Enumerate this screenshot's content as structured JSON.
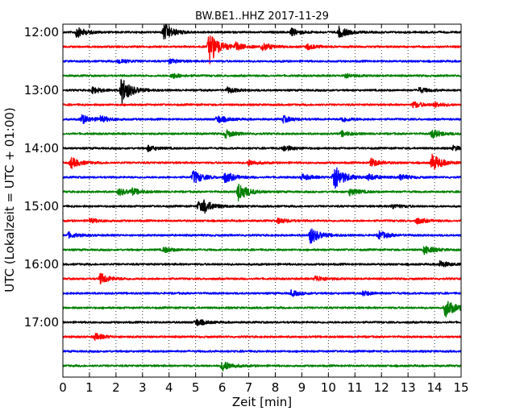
{
  "chart_data": {
    "type": "line",
    "title": "BW.BE1..HHZ 2017-11-29",
    "xlabel": "Zeit  [min]",
    "ylabel": "UTC (Lokalzeit = UTC + 01:00)",
    "xlim": [
      0,
      15
    ],
    "x_ticks": [
      "0",
      "1",
      "2",
      "3",
      "4",
      "5",
      "6",
      "7",
      "8",
      "9",
      "10",
      "11",
      "12",
      "13",
      "14",
      "15"
    ],
    "y_ticks": [
      {
        "label": "12:00",
        "row": 0
      },
      {
        "label": "13:00",
        "row": 4
      },
      {
        "label": "14:00",
        "row": 8
      },
      {
        "label": "15:00",
        "row": 12
      },
      {
        "label": "16:00",
        "row": 16
      },
      {
        "label": "17:00",
        "row": 20
      }
    ],
    "grid": "vertical dotted",
    "trace_minutes_per_line": 15,
    "color_cycle": [
      "#000000",
      "#ff0000",
      "#0000ff",
      "#008000"
    ],
    "traces": [
      {
        "start": "12:00",
        "events": [
          {
            "x": 0.5,
            "amp": 0.6
          },
          {
            "x": 3.8,
            "amp": 1.0
          },
          {
            "x": 8.6,
            "amp": 0.4
          },
          {
            "x": 10.4,
            "amp": 0.6
          }
        ]
      },
      {
        "start": "12:15",
        "events": [
          {
            "x": 5.5,
            "amp": 2.0
          },
          {
            "x": 6.5,
            "amp": 0.4
          },
          {
            "x": 7.5,
            "amp": 0.45
          },
          {
            "x": 9.2,
            "amp": 0.3
          }
        ]
      },
      {
        "start": "12:30",
        "events": [
          {
            "x": 2.1,
            "amp": 0.3
          },
          {
            "x": 4.0,
            "amp": 0.25
          }
        ]
      },
      {
        "start": "12:45",
        "events": [
          {
            "x": 4.1,
            "amp": 0.3
          },
          {
            "x": 10.6,
            "amp": 0.25
          }
        ]
      },
      {
        "start": "13:00",
        "events": [
          {
            "x": 1.1,
            "amp": 0.35
          },
          {
            "x": 2.2,
            "amp": 1.6
          },
          {
            "x": 6.2,
            "amp": 0.3
          },
          {
            "x": 13.4,
            "amp": 0.3
          }
        ]
      },
      {
        "start": "13:15",
        "events": [
          {
            "x": 13.2,
            "amp": 0.35
          },
          {
            "x": 14.0,
            "amp": 0.25
          }
        ]
      },
      {
        "start": "13:30",
        "events": [
          {
            "x": 0.7,
            "amp": 0.5
          },
          {
            "x": 1.4,
            "amp": 0.3
          },
          {
            "x": 5.8,
            "amp": 0.45
          },
          {
            "x": 8.3,
            "amp": 0.35
          },
          {
            "x": 10.5,
            "amp": 0.3
          }
        ]
      },
      {
        "start": "13:45",
        "events": [
          {
            "x": 6.1,
            "amp": 0.45
          },
          {
            "x": 10.5,
            "amp": 0.3
          },
          {
            "x": 13.9,
            "amp": 0.5
          }
        ]
      },
      {
        "start": "14:00",
        "events": [
          {
            "x": 3.2,
            "amp": 0.3
          },
          {
            "x": 8.3,
            "amp": 0.35
          },
          {
            "x": 14.7,
            "amp": 0.25
          }
        ]
      },
      {
        "start": "14:15",
        "events": [
          {
            "x": 0.3,
            "amp": 0.6
          },
          {
            "x": 7.0,
            "amp": 0.3
          },
          {
            "x": 11.6,
            "amp": 0.45
          },
          {
            "x": 13.9,
            "amp": 1.0
          }
        ]
      },
      {
        "start": "14:30",
        "events": [
          {
            "x": 4.9,
            "amp": 0.8
          },
          {
            "x": 6.1,
            "amp": 0.6
          },
          {
            "x": 9.0,
            "amp": 0.35
          },
          {
            "x": 10.2,
            "amp": 1.6
          },
          {
            "x": 11.5,
            "amp": 0.35
          },
          {
            "x": 12.7,
            "amp": 0.3
          }
        ]
      },
      {
        "start": "14:45",
        "events": [
          {
            "x": 2.1,
            "amp": 0.4
          },
          {
            "x": 2.6,
            "amp": 0.3
          },
          {
            "x": 6.6,
            "amp": 1.1
          },
          {
            "x": 10.8,
            "amp": 0.4
          }
        ]
      },
      {
        "start": "15:00",
        "events": [
          {
            "x": 5.1,
            "amp": 0.55
          },
          {
            "x": 5.3,
            "amp": 0.5
          },
          {
            "x": 12.4,
            "amp": 0.25
          }
        ]
      },
      {
        "start": "15:15",
        "events": [
          {
            "x": 1.0,
            "amp": 0.25
          },
          {
            "x": 8.1,
            "amp": 0.3
          },
          {
            "x": 13.3,
            "amp": 0.35
          }
        ]
      },
      {
        "start": "15:30",
        "events": [
          {
            "x": 0.2,
            "amp": 0.3
          },
          {
            "x": 9.3,
            "amp": 1.0
          },
          {
            "x": 11.9,
            "amp": 0.45
          }
        ]
      },
      {
        "start": "15:45",
        "events": [
          {
            "x": 3.8,
            "amp": 0.3
          },
          {
            "x": 13.6,
            "amp": 0.5
          }
        ]
      },
      {
        "start": "16:00",
        "events": [
          {
            "x": 14.2,
            "amp": 0.35
          }
        ]
      },
      {
        "start": "16:15",
        "events": [
          {
            "x": 1.4,
            "amp": 0.6
          },
          {
            "x": 9.5,
            "amp": 0.35
          }
        ]
      },
      {
        "start": "16:30",
        "events": [
          {
            "x": 8.6,
            "amp": 0.3
          },
          {
            "x": 11.3,
            "amp": 0.25
          }
        ]
      },
      {
        "start": "16:45",
        "events": [
          {
            "x": 14.4,
            "amp": 1.1
          }
        ]
      },
      {
        "start": "17:00",
        "events": [
          {
            "x": 5.0,
            "amp": 0.4
          }
        ]
      },
      {
        "start": "17:15",
        "events": [
          {
            "x": 1.2,
            "amp": 0.35
          }
        ]
      },
      {
        "start": "17:30",
        "events": []
      },
      {
        "start": "17:45",
        "events": [
          {
            "x": 6.0,
            "amp": 0.6
          }
        ]
      }
    ]
  }
}
